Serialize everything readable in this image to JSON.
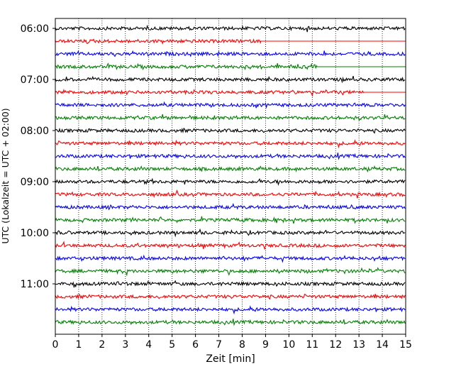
{
  "chart_data": {
    "type": "line",
    "title": "",
    "xlabel": "Zeit  [min]",
    "ylabel": "UTC (Lokalzeit = UTC + 02:00)",
    "xlim": [
      0,
      15
    ],
    "x_ticks": [
      0,
      1,
      2,
      3,
      4,
      5,
      6,
      7,
      8,
      9,
      10,
      11,
      12,
      13,
      14,
      15
    ],
    "x_tick_labels": [
      "0",
      "1",
      "2",
      "3",
      "4",
      "5",
      "6",
      "7",
      "8",
      "9",
      "10",
      "11",
      "12",
      "13",
      "14",
      "15"
    ],
    "y_ticks": [
      "06:00",
      "07:00",
      "08:00",
      "09:00",
      "10:00",
      "11:00"
    ],
    "grid": "vertical dotted",
    "colors": [
      "#000000",
      "#ff0000",
      "#0000ff",
      "#008000"
    ],
    "series": [
      {
        "start": "06:00",
        "color": "#000000",
        "end_min": 15
      },
      {
        "start": "06:15",
        "color": "#ff0000",
        "end_min": 8.8
      },
      {
        "start": "06:30",
        "color": "#0000ff",
        "end_min": 15
      },
      {
        "start": "06:45",
        "color": "#008000",
        "end_min": 11.2
      },
      {
        "start": "07:00",
        "color": "#000000",
        "end_min": 15
      },
      {
        "start": "07:15",
        "color": "#ff0000",
        "end_min": 13.2
      },
      {
        "start": "07:30",
        "color": "#0000ff",
        "end_min": 15
      },
      {
        "start": "07:45",
        "color": "#008000",
        "end_min": 15
      },
      {
        "start": "08:00",
        "color": "#000000",
        "end_min": 15
      },
      {
        "start": "08:15",
        "color": "#ff0000",
        "end_min": 15
      },
      {
        "start": "08:30",
        "color": "#0000ff",
        "end_min": 15
      },
      {
        "start": "08:45",
        "color": "#008000",
        "end_min": 15
      },
      {
        "start": "09:00",
        "color": "#000000",
        "end_min": 15
      },
      {
        "start": "09:15",
        "color": "#ff0000",
        "end_min": 15
      },
      {
        "start": "09:30",
        "color": "#0000ff",
        "end_min": 15
      },
      {
        "start": "09:45",
        "color": "#008000",
        "end_min": 15
      },
      {
        "start": "10:00",
        "color": "#000000",
        "end_min": 15
      },
      {
        "start": "10:15",
        "color": "#ff0000",
        "end_min": 15
      },
      {
        "start": "10:30",
        "color": "#0000ff",
        "end_min": 15
      },
      {
        "start": "10:45",
        "color": "#008000",
        "end_min": 15
      },
      {
        "start": "11:00",
        "color": "#000000",
        "end_min": 15
      },
      {
        "start": "11:15",
        "color": "#ff0000",
        "end_min": 15
      },
      {
        "start": "11:30",
        "color": "#0000ff",
        "end_min": 15
      },
      {
        "start": "11:45",
        "color": "#008000",
        "end_min": 15
      }
    ]
  }
}
